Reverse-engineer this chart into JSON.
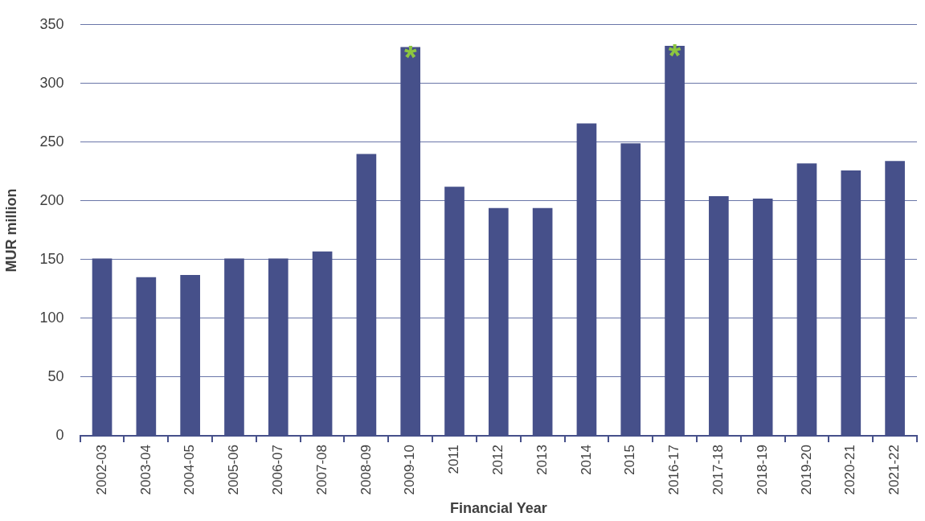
{
  "chart_data": {
    "type": "bar",
    "xlabel": "Financial Year",
    "ylabel": "MUR million",
    "categories": [
      "2002-03",
      "2003-04",
      "2004-05",
      "2005-06",
      "2006-07",
      "2007-08",
      "2008-09",
      "2009-10",
      "2011",
      "2012",
      "2013",
      "2014",
      "2015",
      "2016-17",
      "2017-18",
      "2018-19",
      "2019-20",
      "2020-21",
      "2021-22"
    ],
    "values": [
      151,
      135,
      137,
      151,
      151,
      157,
      240,
      331,
      212,
      194,
      194,
      266,
      249,
      332,
      204,
      202,
      232,
      226,
      234
    ],
    "color": "#46508a",
    "ylim": [
      0,
      350
    ],
    "yticks": [
      0,
      50,
      100,
      150,
      200,
      250,
      300,
      350
    ],
    "grid": "y",
    "annotations": [
      {
        "text": "*",
        "x": "2009-10",
        "y": 331
      },
      {
        "text": "*",
        "x": "2016-17",
        "y": 332
      }
    ]
  }
}
